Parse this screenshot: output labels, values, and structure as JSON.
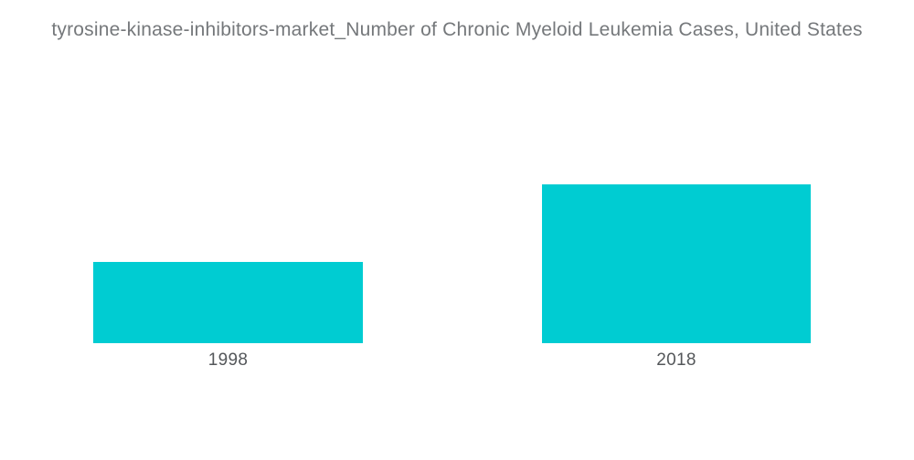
{
  "chart_data": {
    "type": "bar",
    "title": "tyrosine-kinase-inhibitors-market_Number of Chronic Myeloid Leukemia Cases, United States",
    "categories": [
      "1998",
      "2018"
    ],
    "values": [
      4300,
      8430
    ],
    "xlabel": "",
    "ylabel": "",
    "ylim": [
      0,
      8430
    ],
    "bar_color": "#00CCD2",
    "grid": false,
    "legend": false,
    "axes_visible": false,
    "background_color": "#FFFFFF",
    "title_color": "#75787B",
    "label_color": "#54575A"
  }
}
